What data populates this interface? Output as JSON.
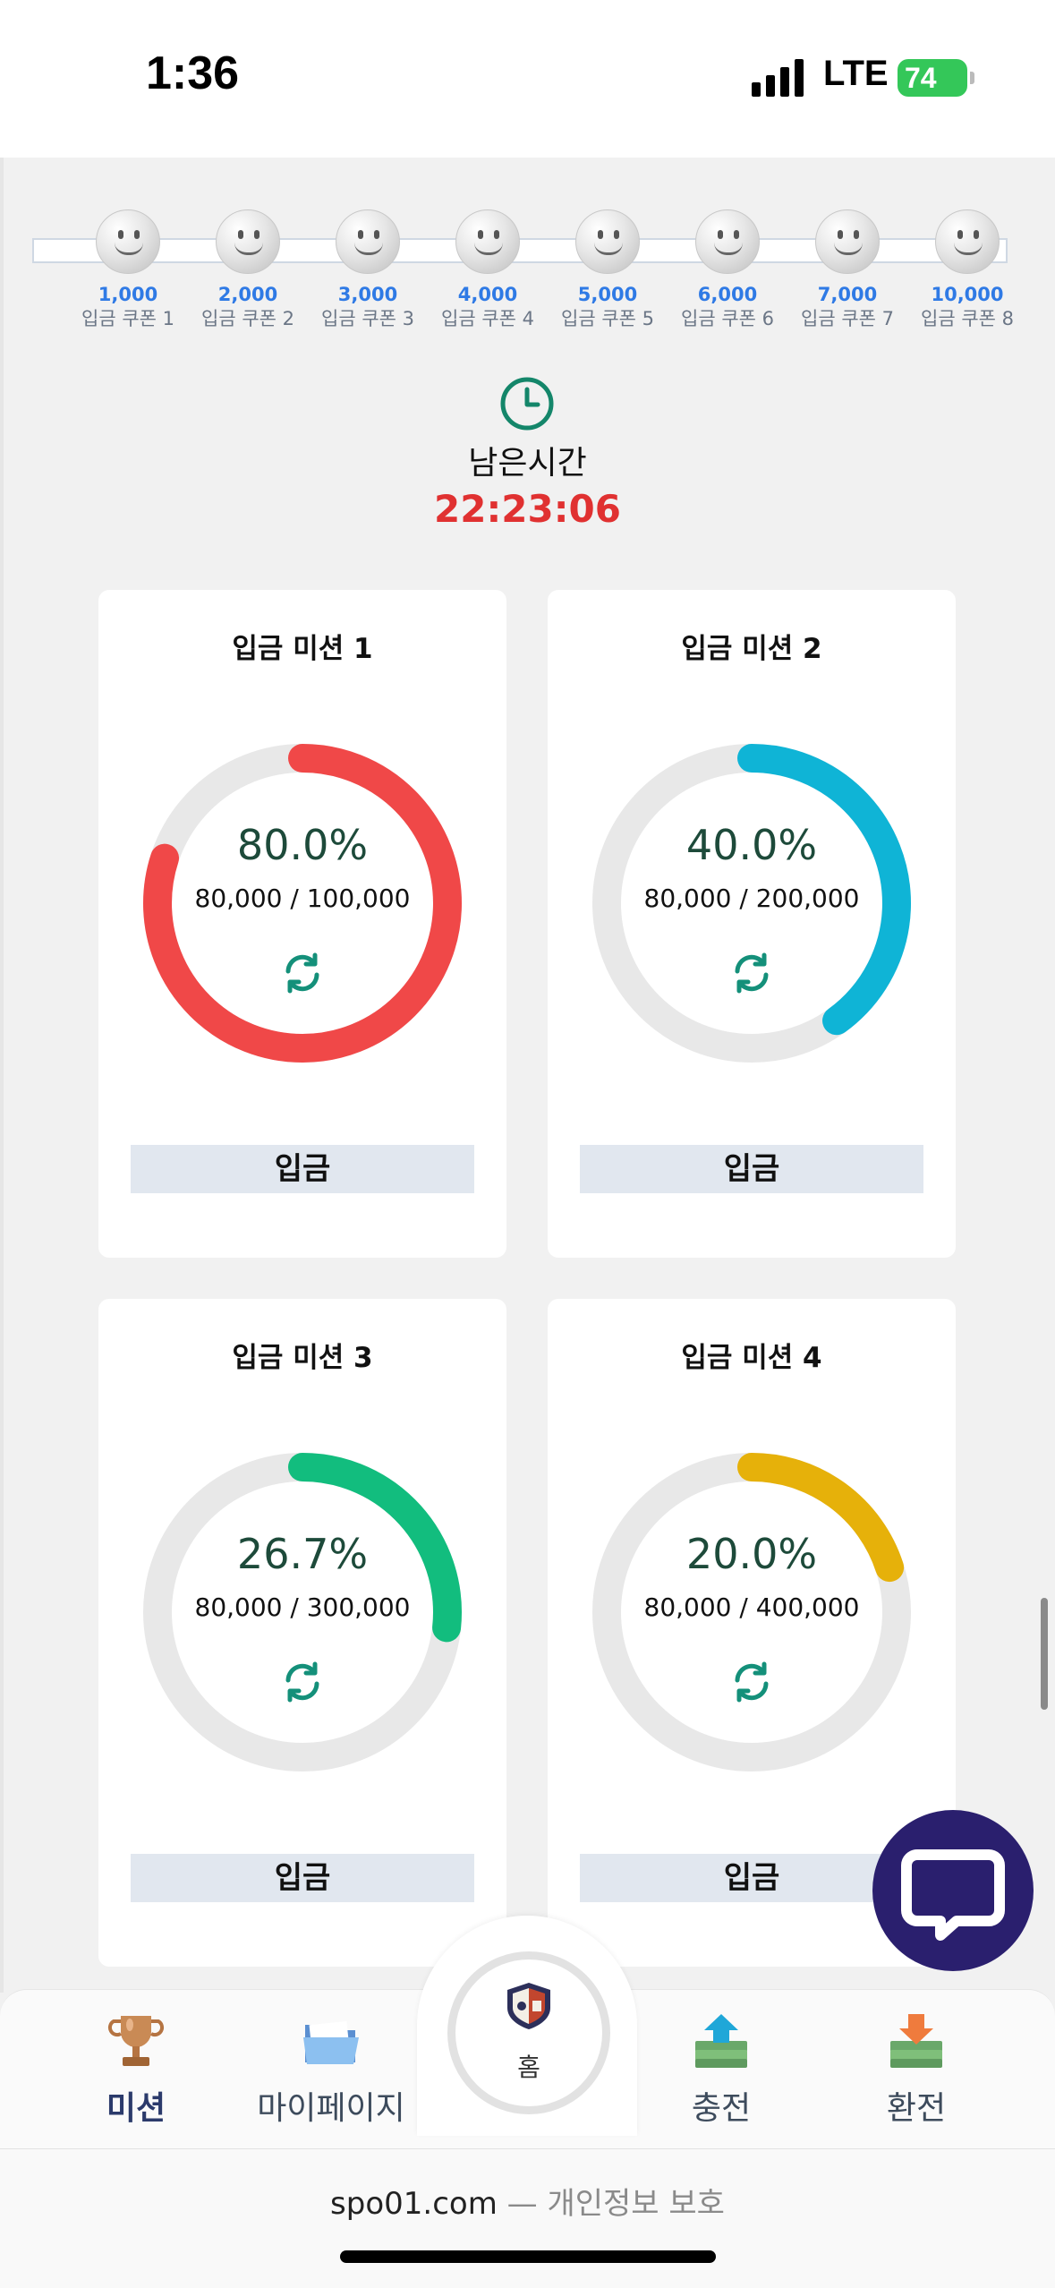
{
  "status_bar": {
    "time": "1:36",
    "network": "LTE",
    "battery": "74"
  },
  "coupons": [
    {
      "amount": "1,000",
      "label": "입금 쿠폰 1"
    },
    {
      "amount": "2,000",
      "label": "입금 쿠폰 2"
    },
    {
      "amount": "3,000",
      "label": "입금 쿠폰 3"
    },
    {
      "amount": "4,000",
      "label": "입금 쿠폰 4"
    },
    {
      "amount": "5,000",
      "label": "입금 쿠폰 5"
    },
    {
      "amount": "6,000",
      "label": "입금 쿠폰 6"
    },
    {
      "amount": "7,000",
      "label": "입금 쿠폰 7"
    },
    {
      "amount": "10,000",
      "label": "입금 쿠폰 8"
    }
  ],
  "timer": {
    "label": "남은시간",
    "value": "22:23:06",
    "color": "#e03131"
  },
  "missions": [
    {
      "title": "입금 미션 1",
      "percent": "80.0%",
      "progress": 0.8,
      "ratio": "80,000 / 100,000",
      "color": "#f04848",
      "button": "입금"
    },
    {
      "title": "입금 미션 2",
      "percent": "40.0%",
      "progress": 0.4,
      "ratio": "80,000 / 200,000",
      "color": "#0fb4d6",
      "button": "입금"
    },
    {
      "title": "입금 미션 3",
      "percent": "26.7%",
      "progress": 0.267,
      "ratio": "80,000 / 300,000",
      "color": "#12bd7e",
      "button": "입금"
    },
    {
      "title": "입금 미션 4",
      "percent": "20.0%",
      "progress": 0.2,
      "ratio": "80,000 / 400,000",
      "color": "#e6b10a",
      "button": "입금"
    }
  ],
  "nav": {
    "mission": "미션",
    "mypage": "마이페이지",
    "home": "홈",
    "charge": "충전",
    "exchange": "환전"
  },
  "footer": {
    "domain": "spo01.com",
    "separator": " — ",
    "privacy": "개인정보 보호"
  }
}
